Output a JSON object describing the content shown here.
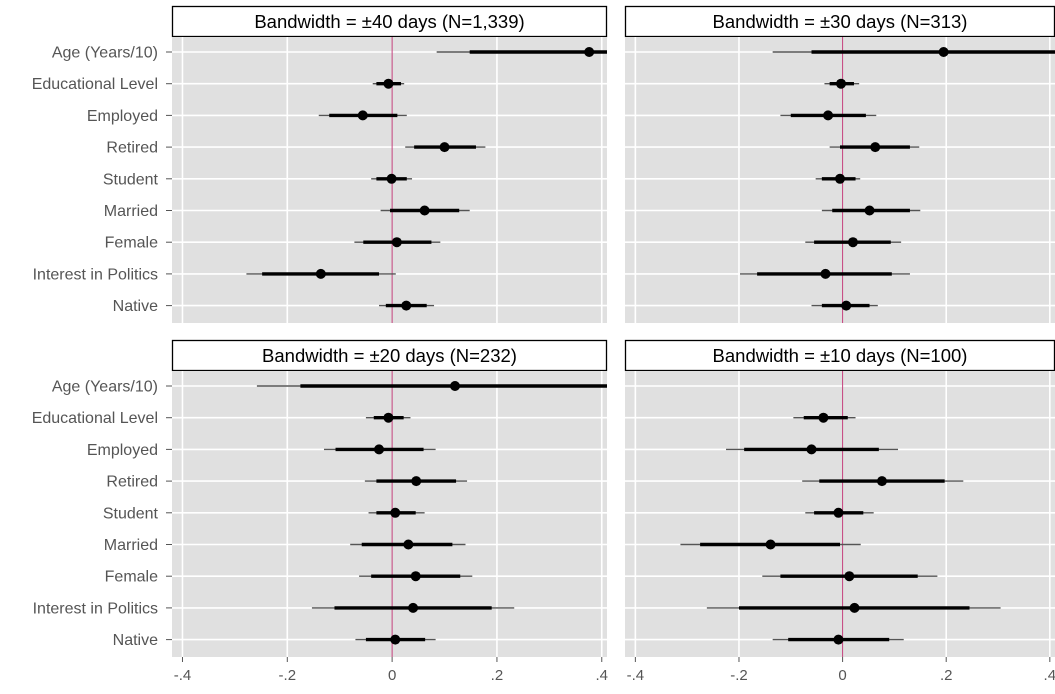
{
  "chart_data": {
    "type": "coefficient-plot",
    "xlim": [
      -0.42,
      0.41
    ],
    "x_ticks": [
      -0.4,
      -0.2,
      0,
      0.2,
      0.4
    ],
    "x_tick_labels": [
      "-.4",
      "-.2",
      "0",
      ".2",
      ".4"
    ],
    "reference_line_x": 0,
    "grid": true,
    "variables": [
      "Age (Years/10)",
      "Educational Level",
      "Employed",
      "Retired",
      "Student",
      "Married",
      "Female",
      "Interest in Politics",
      "Native"
    ],
    "panels": [
      {
        "title": "Bandwidth = ±40 days (N=1,339)",
        "estimates": [
          {
            "variable": "Age (Years/10)",
            "estimate": 0.376,
            "ci90": [
              0.148,
              0.41
            ],
            "ci95": [
              0.085,
              0.41
            ]
          },
          {
            "variable": "Educational Level",
            "estimate": -0.007,
            "ci90": [
              -0.03,
              0.017
            ],
            "ci95": [
              -0.037,
              0.023
            ]
          },
          {
            "variable": "Employed",
            "estimate": -0.056,
            "ci90": [
              -0.12,
              0.01
            ],
            "ci95": [
              -0.14,
              0.028
            ]
          },
          {
            "variable": "Retired",
            "estimate": 0.1,
            "ci90": [
              0.042,
              0.16
            ],
            "ci95": [
              0.025,
              0.178
            ]
          },
          {
            "variable": "Student",
            "estimate": -0.001,
            "ci90": [
              -0.03,
              0.028
            ],
            "ci95": [
              -0.04,
              0.038
            ]
          },
          {
            "variable": "Married",
            "estimate": 0.062,
            "ci90": [
              -0.004,
              0.128
            ],
            "ci95": [
              -0.022,
              0.148
            ]
          },
          {
            "variable": "Female",
            "estimate": 0.009,
            "ci90": [
              -0.055,
              0.075
            ],
            "ci95": [
              -0.072,
              0.092
            ]
          },
          {
            "variable": "Interest in Politics",
            "estimate": -0.136,
            "ci90": [
              -0.248,
              -0.025
            ],
            "ci95": [
              -0.278,
              0.007
            ]
          },
          {
            "variable": "Native",
            "estimate": 0.027,
            "ci90": [
              -0.012,
              0.066
            ],
            "ci95": [
              -0.025,
              0.08
            ]
          }
        ]
      },
      {
        "title": "Bandwidth = ±30 days (N=313)",
        "estimates": [
          {
            "variable": "Age (Years/10)",
            "estimate": 0.195,
            "ci90": [
              -0.06,
              0.41
            ],
            "ci95": [
              -0.135,
              0.41
            ]
          },
          {
            "variable": "Educational Level",
            "estimate": -0.003,
            "ci90": [
              -0.025,
              0.022
            ],
            "ci95": [
              -0.035,
              0.032
            ]
          },
          {
            "variable": "Employed",
            "estimate": -0.028,
            "ci90": [
              -0.1,
              0.045
            ],
            "ci95": [
              -0.12,
              0.065
            ]
          },
          {
            "variable": "Retired",
            "estimate": 0.063,
            "ci90": [
              -0.005,
              0.13
            ],
            "ci95": [
              -0.025,
              0.148
            ]
          },
          {
            "variable": "Student",
            "estimate": -0.005,
            "ci90": [
              -0.04,
              0.025
            ],
            "ci95": [
              -0.052,
              0.034
            ]
          },
          {
            "variable": "Married",
            "estimate": 0.052,
            "ci90": [
              -0.02,
              0.13
            ],
            "ci95": [
              -0.04,
              0.15
            ]
          },
          {
            "variable": "Female",
            "estimate": 0.02,
            "ci90": [
              -0.055,
              0.093
            ],
            "ci95": [
              -0.072,
              0.113
            ]
          },
          {
            "variable": "Interest in Politics",
            "estimate": -0.033,
            "ci90": [
              -0.165,
              0.095
            ],
            "ci95": [
              -0.198,
              0.13
            ]
          },
          {
            "variable": "Native",
            "estimate": 0.007,
            "ci90": [
              -0.04,
              0.052
            ],
            "ci95": [
              -0.06,
              0.068
            ]
          }
        ]
      },
      {
        "title": "Bandwidth = ±20 days (N=232)",
        "estimates": [
          {
            "variable": "Age (Years/10)",
            "estimate": 0.12,
            "ci90": [
              -0.175,
              0.41
            ],
            "ci95": [
              -0.258,
              0.41
            ]
          },
          {
            "variable": "Educational Level",
            "estimate": -0.007,
            "ci90": [
              -0.035,
              0.022
            ],
            "ci95": [
              -0.05,
              0.035
            ]
          },
          {
            "variable": "Employed",
            "estimate": -0.025,
            "ci90": [
              -0.108,
              0.06
            ],
            "ci95": [
              -0.13,
              0.083
            ]
          },
          {
            "variable": "Retired",
            "estimate": 0.046,
            "ci90": [
              -0.03,
              0.122
            ],
            "ci95": [
              -0.052,
              0.143
            ]
          },
          {
            "variable": "Student",
            "estimate": 0.006,
            "ci90": [
              -0.03,
              0.045
            ],
            "ci95": [
              -0.045,
              0.062
            ]
          },
          {
            "variable": "Married",
            "estimate": 0.031,
            "ci90": [
              -0.058,
              0.115
            ],
            "ci95": [
              -0.08,
              0.14
            ]
          },
          {
            "variable": "Female",
            "estimate": 0.045,
            "ci90": [
              -0.04,
              0.13
            ],
            "ci95": [
              -0.063,
              0.153
            ]
          },
          {
            "variable": "Interest in Politics",
            "estimate": 0.04,
            "ci90": [
              -0.11,
              0.19
            ],
            "ci95": [
              -0.153,
              0.233
            ]
          },
          {
            "variable": "Native",
            "estimate": 0.006,
            "ci90": [
              -0.05,
              0.063
            ],
            "ci95": [
              -0.07,
              0.083
            ]
          }
        ]
      },
      {
        "title": "Bandwidth = ±10 days (N=100)",
        "estimates": [
          {
            "variable": "Age (Years/10)",
            "estimate": null,
            "ci90": null,
            "ci95": null
          },
          {
            "variable": "Educational Level",
            "estimate": -0.037,
            "ci90": [
              -0.075,
              0.01
            ],
            "ci95": [
              -0.095,
              0.025
            ]
          },
          {
            "variable": "Employed",
            "estimate": -0.06,
            "ci90": [
              -0.19,
              0.07
            ],
            "ci95": [
              -0.225,
              0.107
            ]
          },
          {
            "variable": "Retired",
            "estimate": 0.076,
            "ci90": [
              -0.045,
              0.197
            ],
            "ci95": [
              -0.078,
              0.233
            ]
          },
          {
            "variable": "Student",
            "estimate": -0.008,
            "ci90": [
              -0.055,
              0.04
            ],
            "ci95": [
              -0.072,
              0.06
            ]
          },
          {
            "variable": "Married",
            "estimate": -0.139,
            "ci90": [
              -0.275,
              -0.005
            ],
            "ci95": [
              -0.313,
              0.035
            ]
          },
          {
            "variable": "Female",
            "estimate": 0.013,
            "ci90": [
              -0.12,
              0.145
            ],
            "ci95": [
              -0.155,
              0.183
            ]
          },
          {
            "variable": "Interest in Politics",
            "estimate": 0.023,
            "ci90": [
              -0.2,
              0.245
            ],
            "ci95": [
              -0.262,
              0.305
            ]
          },
          {
            "variable": "Native",
            "estimate": -0.008,
            "ci90": [
              -0.105,
              0.09
            ],
            "ci95": [
              -0.135,
              0.118
            ]
          }
        ]
      }
    ]
  }
}
